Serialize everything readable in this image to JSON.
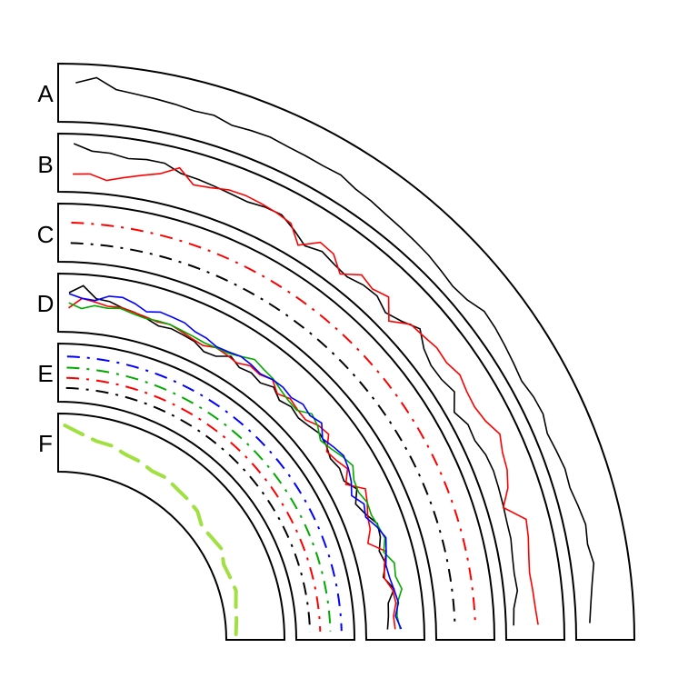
{
  "chart_data": {
    "type": "line",
    "title": "",
    "grid": false,
    "legend": "none",
    "tracks": [
      {
        "label": "A",
        "style": "line",
        "ylim": [
          0,
          1
        ],
        "series": [
          {
            "color": "#000000",
            "values": [
              0.7,
              0.82,
              0.62,
              0.58,
              0.55,
              0.52,
              0.48,
              0.5,
              0.42,
              0.45,
              0.47,
              0.44,
              0.43,
              0.42,
              0.44,
              0.36,
              0.34,
              0.3,
              0.28,
              0.26,
              0.24,
              0.2,
              0.16,
              0.2,
              0.32,
              0.3,
              0.26,
              0.22,
              0.18,
              0.24,
              0.26,
              0.18,
              0.22,
              0.26,
              0.24,
              0.3,
              0.36,
              0.32,
              0.38,
              0.3,
              0.24,
              0.2
            ]
          }
        ]
      },
      {
        "label": "B",
        "style": "line",
        "ylim": [
          0,
          1
        ],
        "series": [
          {
            "color": "#000000",
            "values": [
              0.88,
              0.75,
              0.74,
              0.68,
              0.72,
              0.72,
              0.6,
              0.58,
              0.55,
              0.52,
              0.5,
              0.55,
              0.56,
              0.42,
              0.26,
              0.35,
              0.28,
              0.24,
              0.32,
              0.34,
              0.22,
              0.33,
              0.5,
              0.31,
              0.22,
              0.23,
              0.31,
              0.1,
              0.22,
              0.2,
              0.28,
              0.3,
              0.28,
              0.26,
              0.24,
              0.24,
              0.2,
              0.18,
              0.2,
              0.1,
              0.08
            ]
          },
          {
            "color": "#ff0000",
            "values": [
              0.28,
              0.3,
              0.2,
              0.3,
              0.4,
              0.5,
              0.7,
              0.45,
              0.5,
              0.58,
              0.6,
              0.58,
              0.55,
              0.5,
              0.2,
              0.48,
              0.44,
              0.2,
              0.45,
              0.38,
              0.48,
              0.15,
              0.42,
              0.46,
              0.52,
              0.5,
              0.58,
              0.52,
              0.5,
              0.56,
              0.7,
              0.6,
              0.56,
              0.45,
              0.25,
              0.62,
              0.58,
              0.52,
              0.48,
              0.5,
              0.52,
              0.56
            ]
          }
        ]
      },
      {
        "label": "C",
        "style": "dash-dot",
        "ylim": [
          0,
          1
        ],
        "series": [
          {
            "color": "#ff0000",
            "level": 0.7
          },
          {
            "color": "#000000",
            "level": 0.3
          }
        ]
      },
      {
        "label": "D",
        "style": "line",
        "ylim": [
          0,
          1
        ],
        "series": [
          {
            "color": "#000000",
            "values": [
              0.7,
              0.85,
              0.62,
              0.6,
              0.52,
              0.48,
              0.42,
              0.35,
              0.38,
              0.35,
              0.32,
              0.22,
              0.25,
              0.4,
              0.3,
              0.35,
              0.3,
              0.4,
              0.28,
              0.35,
              0.3,
              0.35,
              0.42,
              0.38,
              0.3,
              0.35,
              0.3,
              0.45,
              0.3,
              0.4,
              0.55,
              0.52,
              0.42,
              0.48,
              0.38,
              0.55,
              0.4,
              0.38,
              0.35
            ]
          },
          {
            "color": "#ff0000",
            "values": [
              0.4,
              0.6,
              0.55,
              0.5,
              0.52,
              0.48,
              0.45,
              0.42,
              0.45,
              0.4,
              0.35,
              0.32,
              0.4,
              0.38,
              0.35,
              0.45,
              0.42,
              0.5,
              0.35,
              0.45,
              0.4,
              0.38,
              0.5,
              0.55,
              0.32,
              0.38,
              0.48,
              0.3,
              0.6,
              0.52,
              0.42,
              0.38,
              0.25,
              0.55,
              0.45,
              0.4,
              0.52,
              0.55,
              0.48,
              0.5
            ]
          },
          {
            "color": "#00aa00",
            "values": [
              0.5,
              0.4,
              0.48,
              0.46,
              0.5,
              0.45,
              0.42,
              0.44,
              0.45,
              0.42,
              0.4,
              0.38,
              0.4,
              0.42,
              0.5,
              0.6,
              0.55,
              0.52,
              0.45,
              0.4,
              0.38,
              0.55,
              0.48,
              0.35,
              0.42,
              0.52,
              0.6,
              0.48,
              0.45,
              0.52,
              0.5,
              0.55,
              0.6,
              0.5,
              0.65,
              0.62,
              0.7,
              0.58,
              0.55,
              0.6
            ]
          },
          {
            "color": "#0000ff",
            "values": [
              0.68,
              0.6,
              0.58,
              0.7,
              0.72,
              0.65,
              0.55,
              0.62,
              0.6,
              0.58,
              0.5,
              0.48,
              0.42,
              0.45,
              0.5,
              0.48,
              0.44,
              0.5,
              0.52,
              0.48,
              0.55,
              0.5,
              0.58,
              0.4,
              0.48,
              0.55,
              0.5,
              0.42,
              0.3,
              0.45,
              0.38,
              0.52,
              0.62,
              0.55,
              0.48,
              0.5,
              0.55,
              0.6,
              0.52,
              0.62
            ]
          }
        ]
      },
      {
        "label": "E",
        "style": "dash-dot",
        "ylim": [
          0,
          1
        ],
        "series": [
          {
            "color": "#0000ff",
            "level": 0.82
          },
          {
            "color": "#00aa00",
            "level": 0.6
          },
          {
            "color": "#ff0000",
            "level": 0.4
          },
          {
            "color": "#000000",
            "level": 0.2
          }
        ]
      },
      {
        "label": "F",
        "style": "long-dash",
        "ylim": [
          0,
          1
        ],
        "series": [
          {
            "color": "#a0e040",
            "values": [
              0.84,
              0.7,
              0.6,
              0.58,
              0.5,
              0.48,
              0.42,
              0.45,
              0.4,
              0.38,
              0.35,
              0.22,
              0.25,
              0.3,
              0.2,
              0.22,
              0.25,
              0.18,
              0.15,
              0.12
            ]
          }
        ]
      }
    ]
  }
}
